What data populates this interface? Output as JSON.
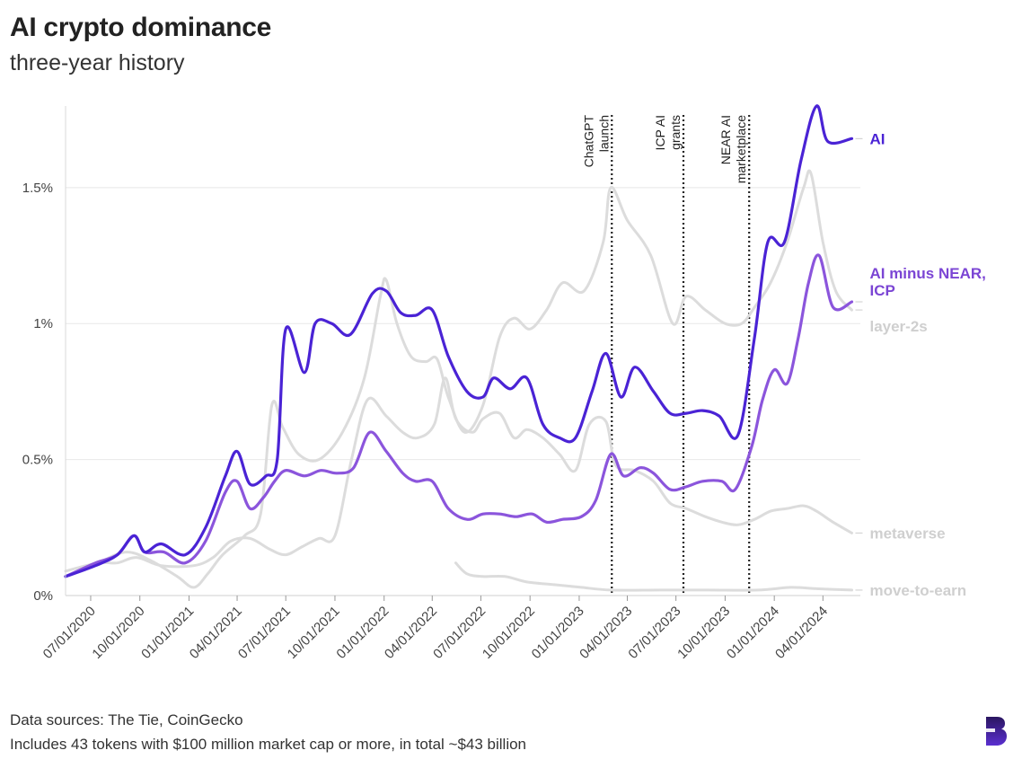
{
  "title": "AI crypto dominance",
  "subtitle": "three-year history",
  "footer": {
    "sources": "Data sources: The Tie, CoinGecko",
    "note": "Includes 43 tokens with $100 million market cap or more, in total ~$43 billion"
  },
  "chart_data": {
    "type": "line",
    "x_axis": {
      "type": "date",
      "range": [
        "2020-05-15",
        "2024-06-10"
      ],
      "tick_labels": [
        "07/01/2020",
        "10/01/2020",
        "01/01/2021",
        "04/01/2021",
        "07/01/2021",
        "10/01/2021",
        "01/01/2022",
        "04/01/2022",
        "07/01/2022",
        "10/01/2022",
        "01/01/2023",
        "04/01/2023",
        "07/01/2023",
        "10/01/2023",
        "01/01/2024",
        "04/01/2024"
      ],
      "tick_dates": [
        "2020-07-01",
        "2020-10-01",
        "2021-01-01",
        "2021-04-01",
        "2021-07-01",
        "2021-10-01",
        "2022-01-01",
        "2022-04-01",
        "2022-07-01",
        "2022-10-01",
        "2023-01-01",
        "2023-04-01",
        "2023-07-01",
        "2023-10-01",
        "2024-01-01",
        "2024-04-01"
      ]
    },
    "y_axis": {
      "range": [
        0,
        1.8
      ],
      "ticks": [
        0,
        0.5,
        1,
        1.5
      ],
      "tick_labels": [
        "0%",
        "0.5%",
        "1%",
        "1.5%"
      ]
    },
    "grid": "horizontal",
    "annotations": [
      {
        "date": "2023-03-03",
        "lines": [
          "ChatGPT",
          "launch"
        ]
      },
      {
        "date": "2023-07-15",
        "lines": [
          "ICP AI",
          "grants"
        ]
      },
      {
        "date": "2023-11-15",
        "lines": [
          "NEAR AI",
          "marketplace"
        ]
      }
    ],
    "series": [
      {
        "name": "layer-2s",
        "color": "#dcdcdc",
        "label_color": "#cfcfcf",
        "points": [
          [
            "2020-05-15",
            0.07
          ],
          [
            "2020-07-15",
            0.12
          ],
          [
            "2020-09-05",
            0.16
          ],
          [
            "2020-10-20",
            0.13
          ],
          [
            "2020-12-10",
            0.07
          ],
          [
            "2021-01-10",
            0.03
          ],
          [
            "2021-02-05",
            0.08
          ],
          [
            "2021-03-05",
            0.15
          ],
          [
            "2021-04-15",
            0.22
          ],
          [
            "2021-05-15",
            0.3
          ],
          [
            "2021-06-05",
            0.7
          ],
          [
            "2021-06-25",
            0.62
          ],
          [
            "2021-07-25",
            0.52
          ],
          [
            "2021-09-01",
            0.5
          ],
          [
            "2021-10-15",
            0.6
          ],
          [
            "2021-11-25",
            0.8
          ],
          [
            "2021-12-25",
            1.1
          ],
          [
            "2022-01-05",
            1.16
          ],
          [
            "2022-01-25",
            1.0
          ],
          [
            "2022-02-20",
            0.88
          ],
          [
            "2022-03-20",
            0.86
          ],
          [
            "2022-04-10",
            0.87
          ],
          [
            "2022-05-01",
            0.73
          ],
          [
            "2022-06-01",
            0.6
          ],
          [
            "2022-07-05",
            0.7
          ],
          [
            "2022-08-05",
            0.95
          ],
          [
            "2022-09-01",
            1.02
          ],
          [
            "2022-10-01",
            0.98
          ],
          [
            "2022-11-01",
            1.05
          ],
          [
            "2022-12-01",
            1.15
          ],
          [
            "2023-01-10",
            1.12
          ],
          [
            "2023-02-15",
            1.3
          ],
          [
            "2023-03-01",
            1.5
          ],
          [
            "2023-04-01",
            1.38
          ],
          [
            "2023-05-15",
            1.25
          ],
          [
            "2023-06-25",
            1.0
          ],
          [
            "2023-07-20",
            1.1
          ],
          [
            "2023-08-25",
            1.05
          ],
          [
            "2023-10-01",
            1.0
          ],
          [
            "2023-11-01",
            1.0
          ],
          [
            "2023-11-25",
            1.06
          ],
          [
            "2023-12-25",
            1.15
          ],
          [
            "2024-01-25",
            1.3
          ],
          [
            "2024-02-25",
            1.5
          ],
          [
            "2024-03-10",
            1.55
          ],
          [
            "2024-04-01",
            1.3
          ],
          [
            "2024-04-25",
            1.12
          ],
          [
            "2024-05-25",
            1.05
          ]
        ]
      },
      {
        "name": "metaverse",
        "color": "#dcdcdc",
        "label_color": "#cfcfcf",
        "points": [
          [
            "2020-05-15",
            0.09
          ],
          [
            "2020-07-15",
            0.12
          ],
          [
            "2020-08-20",
            0.12
          ],
          [
            "2020-09-25",
            0.14
          ],
          [
            "2020-11-10",
            0.11
          ],
          [
            "2021-01-10",
            0.11
          ],
          [
            "2021-02-15",
            0.14
          ],
          [
            "2021-03-20",
            0.2
          ],
          [
            "2021-04-25",
            0.21
          ],
          [
            "2021-06-01",
            0.17
          ],
          [
            "2021-07-01",
            0.15
          ],
          [
            "2021-08-01",
            0.18
          ],
          [
            "2021-09-01",
            0.21
          ],
          [
            "2021-10-01",
            0.22
          ],
          [
            "2021-11-01",
            0.5
          ],
          [
            "2021-12-01",
            0.72
          ],
          [
            "2022-01-05",
            0.66
          ],
          [
            "2022-02-05",
            0.6
          ],
          [
            "2022-03-05",
            0.58
          ],
          [
            "2022-04-05",
            0.63
          ],
          [
            "2022-04-25",
            0.8
          ],
          [
            "2022-05-15",
            0.65
          ],
          [
            "2022-06-15",
            0.6
          ],
          [
            "2022-07-05",
            0.65
          ],
          [
            "2022-08-05",
            0.67
          ],
          [
            "2022-09-01",
            0.58
          ],
          [
            "2022-09-25",
            0.61
          ],
          [
            "2022-10-25",
            0.58
          ],
          [
            "2022-11-25",
            0.52
          ],
          [
            "2022-12-25",
            0.46
          ],
          [
            "2023-01-20",
            0.63
          ],
          [
            "2023-02-20",
            0.64
          ],
          [
            "2023-03-10",
            0.48
          ],
          [
            "2023-04-15",
            0.46
          ],
          [
            "2023-05-20",
            0.42
          ],
          [
            "2023-06-20",
            0.34
          ],
          [
            "2023-07-20",
            0.32
          ],
          [
            "2023-08-25",
            0.29
          ],
          [
            "2023-09-25",
            0.27
          ],
          [
            "2023-10-25",
            0.26
          ],
          [
            "2023-11-25",
            0.28
          ],
          [
            "2023-12-25",
            0.31
          ],
          [
            "2024-01-25",
            0.32
          ],
          [
            "2024-02-25",
            0.33
          ],
          [
            "2024-03-20",
            0.31
          ],
          [
            "2024-04-20",
            0.27
          ],
          [
            "2024-05-25",
            0.23
          ]
        ]
      },
      {
        "name": "move-to-earn",
        "color": "#dcdcdc",
        "label_color": "#cfcfcf",
        "points": [
          [
            "2022-05-15",
            0.12
          ],
          [
            "2022-06-05",
            0.08
          ],
          [
            "2022-07-05",
            0.07
          ],
          [
            "2022-08-15",
            0.07
          ],
          [
            "2022-09-25",
            0.05
          ],
          [
            "2022-11-15",
            0.04
          ],
          [
            "2023-01-05",
            0.03
          ],
          [
            "2023-03-01",
            0.02
          ],
          [
            "2023-06-01",
            0.02
          ],
          [
            "2023-09-01",
            0.02
          ],
          [
            "2023-12-01",
            0.02
          ],
          [
            "2024-02-01",
            0.03
          ],
          [
            "2024-03-20",
            0.025
          ],
          [
            "2024-05-25",
            0.02
          ]
        ]
      },
      {
        "name": "AI minus NEAR, ICP",
        "color": "#8b55dc",
        "label_color": "#7b45d4",
        "points": [
          [
            "2020-05-15",
            0.07
          ],
          [
            "2020-07-10",
            0.12
          ],
          [
            "2020-08-20",
            0.15
          ],
          [
            "2020-09-20",
            0.22
          ],
          [
            "2020-10-10",
            0.16
          ],
          [
            "2020-11-15",
            0.16
          ],
          [
            "2020-12-25",
            0.12
          ],
          [
            "2021-02-01",
            0.2
          ],
          [
            "2021-03-10",
            0.38
          ],
          [
            "2021-04-01",
            0.42
          ],
          [
            "2021-04-25",
            0.32
          ],
          [
            "2021-05-20",
            0.36
          ],
          [
            "2021-06-10",
            0.42
          ],
          [
            "2021-07-01",
            0.46
          ],
          [
            "2021-08-05",
            0.44
          ],
          [
            "2021-09-05",
            0.46
          ],
          [
            "2021-10-05",
            0.45
          ],
          [
            "2021-11-05",
            0.47
          ],
          [
            "2021-12-05",
            0.6
          ],
          [
            "2022-01-05",
            0.53
          ],
          [
            "2022-02-05",
            0.45
          ],
          [
            "2022-03-01",
            0.42
          ],
          [
            "2022-04-01",
            0.42
          ],
          [
            "2022-05-01",
            0.32
          ],
          [
            "2022-06-05",
            0.28
          ],
          [
            "2022-07-05",
            0.3
          ],
          [
            "2022-08-05",
            0.3
          ],
          [
            "2022-09-05",
            0.29
          ],
          [
            "2022-10-05",
            0.3
          ],
          [
            "2022-11-01",
            0.27
          ],
          [
            "2022-12-01",
            0.28
          ],
          [
            "2023-01-05",
            0.29
          ],
          [
            "2023-02-01",
            0.35
          ],
          [
            "2023-03-01",
            0.52
          ],
          [
            "2023-03-25",
            0.44
          ],
          [
            "2023-04-25",
            0.47
          ],
          [
            "2023-05-20",
            0.45
          ],
          [
            "2023-06-20",
            0.39
          ],
          [
            "2023-07-20",
            0.4
          ],
          [
            "2023-08-20",
            0.42
          ],
          [
            "2023-09-25",
            0.42
          ],
          [
            "2023-10-20",
            0.39
          ],
          [
            "2023-11-20",
            0.55
          ],
          [
            "2023-12-10",
            0.72
          ],
          [
            "2024-01-01",
            0.83
          ],
          [
            "2024-01-25",
            0.78
          ],
          [
            "2024-02-15",
            0.95
          ],
          [
            "2024-03-05",
            1.15
          ],
          [
            "2024-03-25",
            1.25
          ],
          [
            "2024-04-20",
            1.06
          ],
          [
            "2024-05-25",
            1.08
          ]
        ]
      },
      {
        "name": "AI",
        "color": "#4a23d5",
        "label_color": "#4a23d5",
        "points": [
          [
            "2020-05-15",
            0.07
          ],
          [
            "2020-07-10",
            0.11
          ],
          [
            "2020-08-20",
            0.15
          ],
          [
            "2020-09-20",
            0.22
          ],
          [
            "2020-10-10",
            0.16
          ],
          [
            "2020-11-10",
            0.19
          ],
          [
            "2020-12-25",
            0.15
          ],
          [
            "2021-02-01",
            0.25
          ],
          [
            "2021-03-10",
            0.44
          ],
          [
            "2021-04-01",
            0.53
          ],
          [
            "2021-04-25",
            0.41
          ],
          [
            "2021-05-25",
            0.44
          ],
          [
            "2021-06-15",
            0.5
          ],
          [
            "2021-07-01",
            0.98
          ],
          [
            "2021-08-05",
            0.82
          ],
          [
            "2021-08-25",
            1.0
          ],
          [
            "2021-09-25",
            1.0
          ],
          [
            "2021-10-30",
            0.96
          ],
          [
            "2021-12-10",
            1.11
          ],
          [
            "2022-01-05",
            1.12
          ],
          [
            "2022-02-01",
            1.04
          ],
          [
            "2022-03-01",
            1.03
          ],
          [
            "2022-04-01",
            1.05
          ],
          [
            "2022-05-01",
            0.88
          ],
          [
            "2022-06-05",
            0.75
          ],
          [
            "2022-07-05",
            0.73
          ],
          [
            "2022-07-25",
            0.8
          ],
          [
            "2022-08-25",
            0.76
          ],
          [
            "2022-09-25",
            0.8
          ],
          [
            "2022-10-25",
            0.63
          ],
          [
            "2022-11-25",
            0.58
          ],
          [
            "2022-12-25",
            0.58
          ],
          [
            "2023-01-25",
            0.75
          ],
          [
            "2023-02-20",
            0.89
          ],
          [
            "2023-03-20",
            0.73
          ],
          [
            "2023-04-15",
            0.84
          ],
          [
            "2023-05-20",
            0.75
          ],
          [
            "2023-06-20",
            0.67
          ],
          [
            "2023-07-20",
            0.67
          ],
          [
            "2023-08-20",
            0.68
          ],
          [
            "2023-09-20",
            0.66
          ],
          [
            "2023-10-25",
            0.59
          ],
          [
            "2023-11-25",
            0.95
          ],
          [
            "2023-12-20",
            1.3
          ],
          [
            "2024-01-20",
            1.3
          ],
          [
            "2024-02-20",
            1.6
          ],
          [
            "2024-03-20",
            1.8
          ],
          [
            "2024-04-10",
            1.67
          ],
          [
            "2024-05-25",
            1.68
          ]
        ]
      }
    ]
  }
}
